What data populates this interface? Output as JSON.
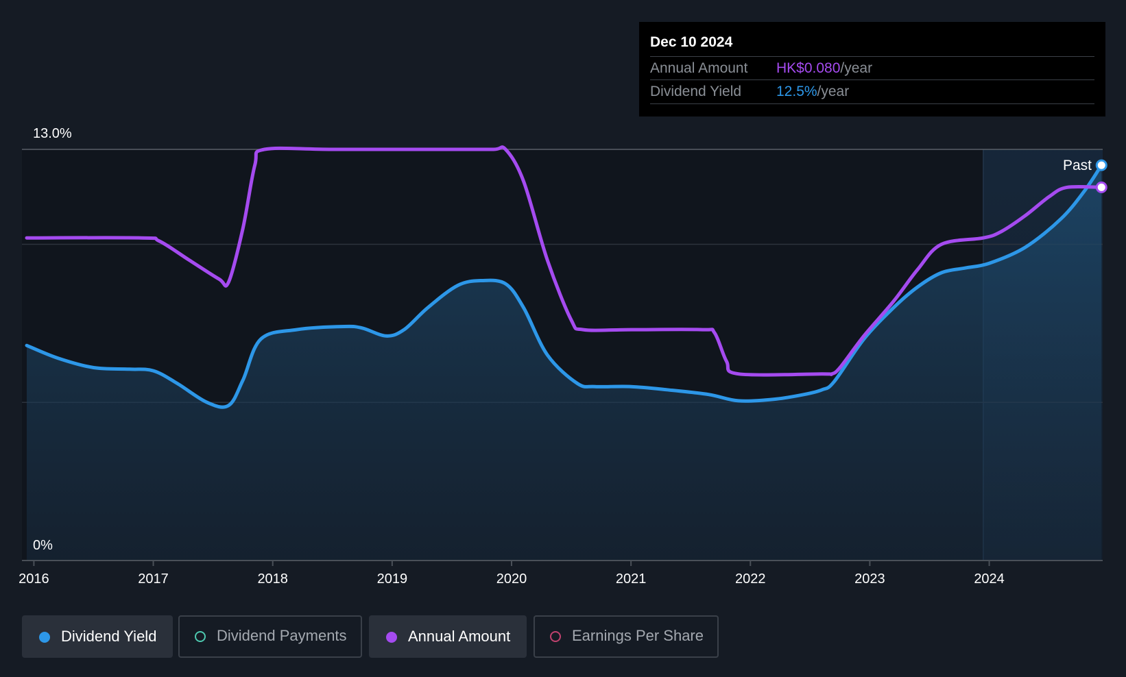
{
  "tooltip": {
    "date": "Dec 10 2024",
    "rows": [
      {
        "label": "Annual Amount",
        "value": "HK$0.080",
        "unit": "/year",
        "color": "#a54bf0"
      },
      {
        "label": "Dividend Yield",
        "value": "12.5%",
        "unit": "/year",
        "color": "#2d97e8"
      }
    ]
  },
  "legend": [
    {
      "label": "Dividend Yield",
      "active": true,
      "color": "#2d97e8",
      "filled": true
    },
    {
      "label": "Dividend Payments",
      "active": false,
      "color": "#4ec9b0",
      "filled": false
    },
    {
      "label": "Annual Amount",
      "active": true,
      "color": "#a54bf0",
      "filled": true
    },
    {
      "label": "Earnings Per Share",
      "active": false,
      "color": "#c0426e",
      "filled": false
    }
  ],
  "chart_data": {
    "type": "line",
    "y_axis_labels": [
      "13.0%",
      "0%"
    ],
    "ylim": [
      0,
      13.0
    ],
    "xlim": [
      2015.9,
      2024.95
    ],
    "x_ticks": [
      2016,
      2017,
      2018,
      2019,
      2020,
      2021,
      2022,
      2023,
      2024
    ],
    "past_label": "Past",
    "past_start": 2023.95,
    "grid": true,
    "series": [
      {
        "name": "Dividend Yield",
        "color": "#2d97e8",
        "area": true,
        "x": [
          2015.94,
          2016.2,
          2016.5,
          2016.8,
          2017.0,
          2017.2,
          2017.45,
          2017.63,
          2017.75,
          2017.9,
          2018.2,
          2018.6,
          2018.75,
          2018.95,
          2019.1,
          2019.3,
          2019.55,
          2019.75,
          2019.95,
          2020.1,
          2020.3,
          2020.55,
          2020.7,
          2021.0,
          2021.3,
          2021.65,
          2021.9,
          2022.2,
          2022.45,
          2022.6,
          2022.7,
          2022.95,
          2023.2,
          2023.4,
          2023.6,
          2023.8,
          2024.0,
          2024.3,
          2024.6,
          2024.8,
          2024.94
        ],
        "values": [
          6.8,
          6.4,
          6.1,
          6.05,
          6.0,
          5.6,
          5.0,
          4.9,
          5.7,
          7.0,
          7.3,
          7.4,
          7.35,
          7.1,
          7.3,
          8.0,
          8.7,
          8.85,
          8.75,
          8.0,
          6.5,
          5.6,
          5.5,
          5.5,
          5.4,
          5.25,
          5.05,
          5.1,
          5.25,
          5.4,
          5.65,
          7.0,
          8.0,
          8.65,
          9.1,
          9.25,
          9.4,
          9.9,
          10.8,
          11.7,
          12.5
        ]
      },
      {
        "name": "Annual Amount",
        "color": "#a54bf0",
        "area": false,
        "x": [
          2015.94,
          2016.9,
          2017.05,
          2017.3,
          2017.55,
          2017.63,
          2017.75,
          2017.85,
          2017.93,
          2018.5,
          2019.5,
          2019.85,
          2019.95,
          2020.1,
          2020.3,
          2020.5,
          2020.6,
          2021.0,
          2021.6,
          2021.7,
          2021.8,
          2021.9,
          2022.6,
          2022.68,
          2022.75,
          2022.95,
          2023.2,
          2023.4,
          2023.6,
          2023.95,
          2024.1,
          2024.3,
          2024.5,
          2024.65,
          2024.94
        ],
        "values": [
          10.2,
          10.2,
          10.1,
          9.5,
          8.9,
          8.8,
          10.5,
          12.5,
          13.0,
          13.0,
          13.0,
          13.0,
          13.0,
          12.0,
          9.5,
          7.6,
          7.3,
          7.3,
          7.3,
          7.2,
          6.3,
          5.9,
          5.9,
          5.9,
          6.1,
          7.1,
          8.2,
          9.2,
          10.0,
          10.2,
          10.4,
          10.9,
          11.5,
          11.8,
          11.8
        ]
      }
    ]
  }
}
